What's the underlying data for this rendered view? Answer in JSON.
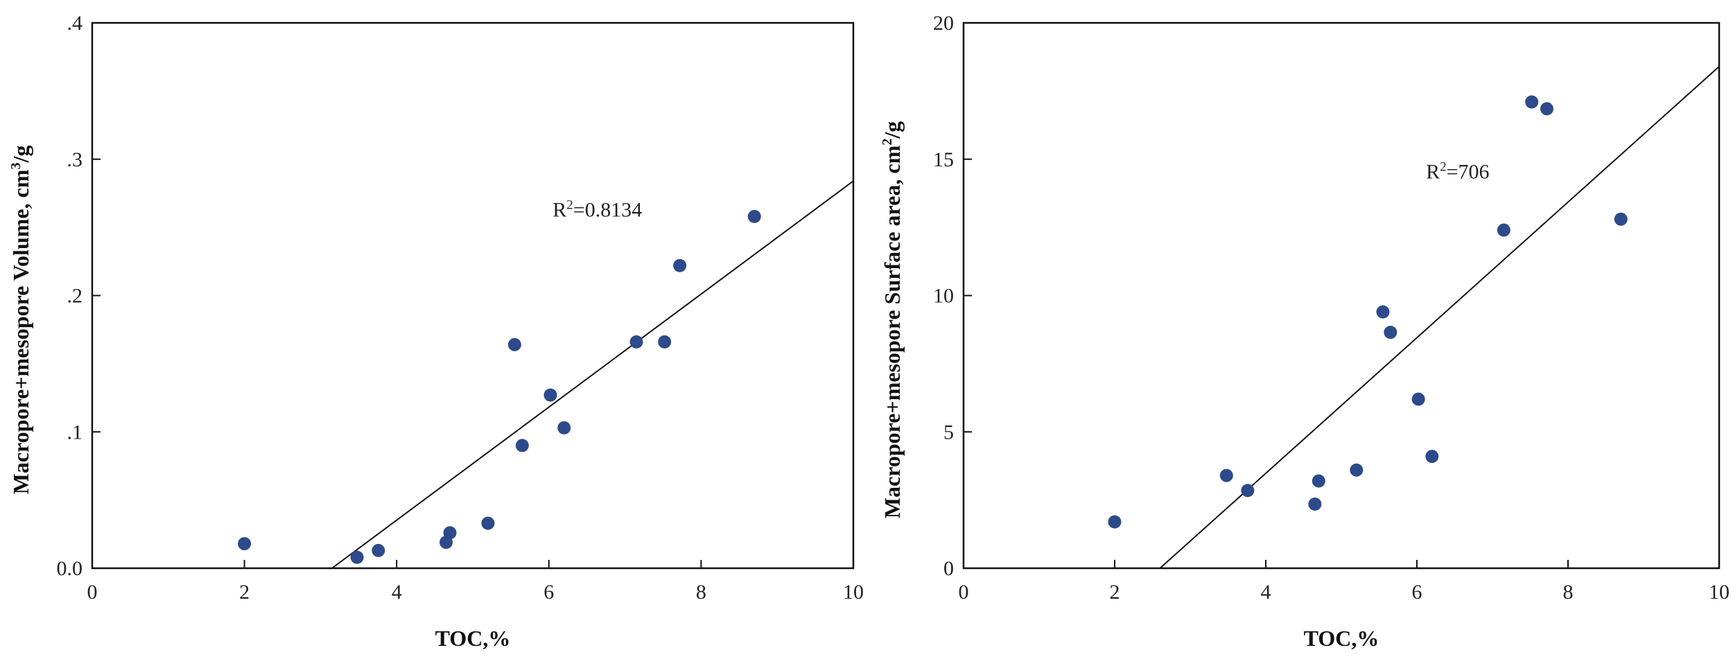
{
  "accent_color": "#2d4a8a",
  "chart_data": [
    {
      "type": "scatter",
      "xlabel": "TOC,%",
      "ylabel_html": "Macropore+mesopore Volume, cm³/g",
      "ylabel_main": "Macropore+mesopore Volume, cm",
      "ylabel_sup": "3",
      "ylabel_tail": "/g",
      "xlim": [
        0,
        10
      ],
      "ylim": [
        0,
        0.4
      ],
      "x_ticks": [
        0,
        2,
        4,
        6,
        8,
        10
      ],
      "x_tick_labels": [
        "0",
        "2",
        "4",
        "6",
        "8",
        "10"
      ],
      "y_ticks": [
        0,
        0.1,
        0.2,
        0.3,
        0.4
      ],
      "y_tick_labels": [
        "0.0",
        ".1",
        ".2",
        ".3",
        ".4"
      ],
      "annotation_main": "R",
      "annotation_sup": "2",
      "annotation_tail": "=0.8134",
      "annotation_pos": [
        6.05,
        0.258
      ],
      "fit_line": [
        [
          3.15,
          0.0
        ],
        [
          10,
          0.284
        ]
      ],
      "x": [
        2.0,
        3.48,
        3.76,
        4.65,
        4.7,
        5.2,
        5.55,
        5.65,
        6.02,
        6.2,
        7.15,
        7.52,
        7.72,
        8.7
      ],
      "y": [
        0.018,
        0.008,
        0.013,
        0.019,
        0.026,
        0.033,
        0.164,
        0.09,
        0.127,
        0.103,
        0.166,
        0.166,
        0.222,
        0.258
      ]
    },
    {
      "type": "scatter",
      "xlabel": "TOC,%",
      "ylabel_main": "Macropore+mesopore Surface area, cm",
      "ylabel_sup": "2",
      "ylabel_tail": "/g",
      "xlim": [
        0,
        10
      ],
      "ylim": [
        0,
        20
      ],
      "x_ticks": [
        0,
        2,
        4,
        6,
        8,
        10
      ],
      "x_tick_labels": [
        "0",
        "2",
        "4",
        "6",
        "8",
        "10"
      ],
      "y_ticks": [
        0,
        5,
        10,
        15,
        20
      ],
      "y_tick_labels": [
        "0",
        "5",
        "10",
        "15",
        "20"
      ],
      "annotation_main": "R",
      "annotation_sup": "2",
      "annotation_tail": "=706",
      "annotation_pos": [
        6.12,
        14.3
      ],
      "fit_line": [
        [
          2.6,
          0.0
        ],
        [
          10,
          18.4
        ]
      ],
      "x": [
        2.0,
        3.48,
        3.76,
        4.65,
        4.7,
        5.2,
        5.55,
        5.65,
        6.02,
        6.2,
        7.15,
        7.52,
        7.72,
        8.7
      ],
      "y": [
        1.7,
        3.4,
        2.85,
        2.35,
        3.2,
        3.6,
        9.4,
        8.65,
        6.2,
        4.1,
        12.4,
        17.1,
        16.85,
        12.8
      ]
    }
  ]
}
